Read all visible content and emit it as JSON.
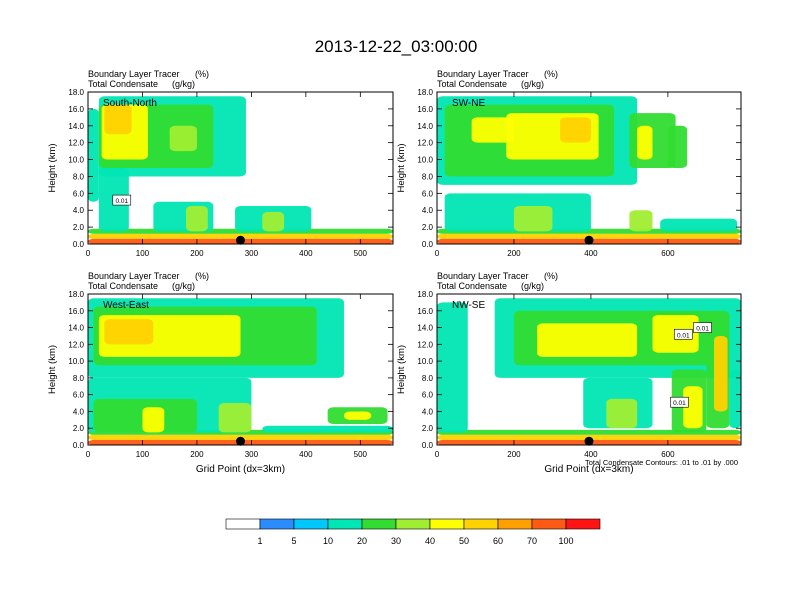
{
  "figure": {
    "title": "2013-12-22_03:00:00",
    "contour_note": "Total Condensate Contours: .01 to .01 by .000"
  },
  "colors": {
    "fill_levels": [
      "#ffffff",
      "#2b8cff",
      "#00c8ff",
      "#00e6b4",
      "#32dc32",
      "#a0ee32",
      "#ffff00",
      "#ffd200",
      "#ffa000",
      "#ff5a14",
      "#ff1414"
    ],
    "contour_line": "#000000",
    "marker": "#000000"
  },
  "chart_data": [
    {
      "type": "heatmap",
      "id": "south-north",
      "label": "South-North",
      "subtitle_left_1": "Boundary Layer Tracer",
      "subtitle_unit_1": "(%)",
      "subtitle_left_2": "Total Condensate",
      "subtitle_unit_2": "(g/kg)",
      "ylabel": "Height (km)",
      "xlabel": "",
      "xlim": [
        0,
        560
      ],
      "ylim": [
        0,
        18
      ],
      "xticks": [
        0,
        100,
        200,
        300,
        400,
        500
      ],
      "yticks": [
        "0.0",
        "2.0",
        "4.0",
        "6.0",
        "8.0",
        "10.0",
        "12.0",
        "14.0",
        "16.0",
        "18.0"
      ],
      "marker_x": 280,
      "contour_labels": [
        {
          "x": 62,
          "y": 5.2,
          "text": "0.01"
        }
      ],
      "regions": [
        {
          "x0": 0,
          "x1": 560,
          "y0": 1.2,
          "y1": 1.8,
          "v": 25
        },
        {
          "x0": 0,
          "x1": 560,
          "y0": 0.6,
          "y1": 1.2,
          "v": 55
        },
        {
          "x0": 0,
          "x1": 560,
          "y0": 0,
          "y1": 0.6,
          "v": 85
        },
        {
          "x0": 20,
          "x1": 290,
          "y0": 8,
          "y1": 17.5,
          "v": 10
        },
        {
          "x0": 20,
          "x1": 230,
          "y0": 9,
          "y1": 16.5,
          "v": 25
        },
        {
          "x0": 25,
          "x1": 110,
          "y0": 10,
          "y1": 16.5,
          "v": 45
        },
        {
          "x0": 30,
          "x1": 80,
          "y0": 13,
          "y1": 16.5,
          "v": 55
        },
        {
          "x0": 150,
          "x1": 200,
          "y0": 11,
          "y1": 14,
          "v": 35
        },
        {
          "x0": 20,
          "x1": 75,
          "y0": 1.5,
          "y1": 9,
          "v": 15
        },
        {
          "x0": 120,
          "x1": 230,
          "y0": 1.5,
          "y1": 5,
          "v": 10
        },
        {
          "x0": 180,
          "x1": 220,
          "y0": 1.5,
          "y1": 4.5,
          "v": 30
        },
        {
          "x0": 270,
          "x1": 410,
          "y0": 1.5,
          "y1": 4.5,
          "v": 10
        },
        {
          "x0": 320,
          "x1": 360,
          "y0": 1.5,
          "y1": 3.8,
          "v": 30
        },
        {
          "x0": 0,
          "x1": 20,
          "y0": 5,
          "y1": 16,
          "v": 10
        }
      ]
    },
    {
      "type": "heatmap",
      "id": "sw-ne",
      "label": "SW-NE",
      "subtitle_left_1": "Boundary Layer Tracer",
      "subtitle_unit_1": "(%)",
      "subtitle_left_2": "Total Condensate",
      "subtitle_unit_2": "(g/kg)",
      "ylabel": "Height (km)",
      "xlabel": "",
      "xlim": [
        0,
        790
      ],
      "ylim": [
        0,
        18
      ],
      "xticks": [
        0,
        200,
        400,
        600
      ],
      "yticks": [
        "0.0",
        "2.0",
        "4.0",
        "6.0",
        "8.0",
        "10.0",
        "12.0",
        "14.0",
        "16.0",
        "18.0"
      ],
      "marker_x": 395,
      "contour_labels": [],
      "regions": [
        {
          "x0": 0,
          "x1": 790,
          "y0": 1.2,
          "y1": 1.8,
          "v": 25
        },
        {
          "x0": 0,
          "x1": 790,
          "y0": 0.6,
          "y1": 1.2,
          "v": 55
        },
        {
          "x0": 0,
          "x1": 790,
          "y0": 0,
          "y1": 0.6,
          "v": 85
        },
        {
          "x0": 0,
          "x1": 520,
          "y0": 7,
          "y1": 17.5,
          "v": 10
        },
        {
          "x0": 20,
          "x1": 460,
          "y0": 8,
          "y1": 16.5,
          "v": 25
        },
        {
          "x0": 180,
          "x1": 420,
          "y0": 10,
          "y1": 15.5,
          "v": 45
        },
        {
          "x0": 320,
          "x1": 400,
          "y0": 12,
          "y1": 15,
          "v": 55
        },
        {
          "x0": 90,
          "x1": 200,
          "y0": 12,
          "y1": 15,
          "v": 40
        },
        {
          "x0": 500,
          "x1": 620,
          "y0": 9,
          "y1": 15.5,
          "v": 20
        },
        {
          "x0": 520,
          "x1": 560,
          "y0": 10,
          "y1": 14,
          "v": 45
        },
        {
          "x0": 600,
          "x1": 650,
          "y0": 9,
          "y1": 14,
          "v": 20
        },
        {
          "x0": 20,
          "x1": 400,
          "y0": 1.5,
          "y1": 6,
          "v": 15
        },
        {
          "x0": 200,
          "x1": 300,
          "y0": 1.5,
          "y1": 4.5,
          "v": 30
        },
        {
          "x0": 500,
          "x1": 560,
          "y0": 1.5,
          "y1": 4,
          "v": 30
        },
        {
          "x0": 580,
          "x1": 780,
          "y0": 1.5,
          "y1": 3,
          "v": 10
        }
      ]
    },
    {
      "type": "heatmap",
      "id": "west-east",
      "label": "West-East",
      "subtitle_left_1": "Boundary Layer Tracer",
      "subtitle_unit_1": "(%)",
      "subtitle_left_2": "Total Condensate",
      "subtitle_unit_2": "(g/kg)",
      "ylabel": "Height (km)",
      "xlabel": "Grid Point (dx=3km)",
      "xlim": [
        0,
        560
      ],
      "ylim": [
        0,
        18
      ],
      "xticks": [
        0,
        100,
        200,
        300,
        400,
        500
      ],
      "yticks": [
        "0.0",
        "2.0",
        "4.0",
        "6.0",
        "8.0",
        "10.0",
        "12.0",
        "14.0",
        "16.0",
        "18.0"
      ],
      "marker_x": 280,
      "contour_labels": [],
      "regions": [
        {
          "x0": 0,
          "x1": 560,
          "y0": 1.2,
          "y1": 1.8,
          "v": 25
        },
        {
          "x0": 0,
          "x1": 560,
          "y0": 0.6,
          "y1": 1.2,
          "v": 55
        },
        {
          "x0": 0,
          "x1": 560,
          "y0": 0,
          "y1": 0.6,
          "v": 85
        },
        {
          "x0": 0,
          "x1": 470,
          "y0": 8,
          "y1": 17.5,
          "v": 10
        },
        {
          "x0": 10,
          "x1": 420,
          "y0": 9.5,
          "y1": 16.5,
          "v": 25
        },
        {
          "x0": 20,
          "x1": 280,
          "y0": 10.5,
          "y1": 15.5,
          "v": 45
        },
        {
          "x0": 30,
          "x1": 120,
          "y0": 12,
          "y1": 15,
          "v": 55
        },
        {
          "x0": 0,
          "x1": 300,
          "y0": 1.5,
          "y1": 8,
          "v": 10
        },
        {
          "x0": 10,
          "x1": 200,
          "y0": 1.5,
          "y1": 5.5,
          "v": 25
        },
        {
          "x0": 100,
          "x1": 140,
          "y0": 1.5,
          "y1": 4.5,
          "v": 45
        },
        {
          "x0": 240,
          "x1": 300,
          "y0": 1.5,
          "y1": 5,
          "v": 30
        },
        {
          "x0": 440,
          "x1": 550,
          "y0": 2.5,
          "y1": 4.5,
          "v": 25
        },
        {
          "x0": 470,
          "x1": 520,
          "y0": 3,
          "y1": 4,
          "v": 40
        },
        {
          "x0": 320,
          "x1": 560,
          "y0": 1.5,
          "y1": 2.3,
          "v": 10
        }
      ]
    },
    {
      "type": "heatmap",
      "id": "nw-se",
      "label": "NW-SE",
      "subtitle_left_1": "Boundary Layer Tracer",
      "subtitle_unit_1": "(%)",
      "subtitle_left_2": "Total Condensate",
      "subtitle_unit_2": "(g/kg)",
      "ylabel": "Height (km)",
      "xlabel": "Grid Point (dx=3km)",
      "xlim": [
        0,
        790
      ],
      "ylim": [
        0,
        18
      ],
      "xticks": [
        0,
        200,
        400,
        600
      ],
      "yticks": [
        "0.0",
        "2.0",
        "4.0",
        "6.0",
        "8.0",
        "10.0",
        "12.0",
        "14.0",
        "16.0",
        "18.0"
      ],
      "marker_x": 395,
      "contour_labels": [
        {
          "x": 640,
          "y": 13.2,
          "text": "0.01"
        },
        {
          "x": 690,
          "y": 14.0,
          "text": "0.01"
        },
        {
          "x": 630,
          "y": 5.1,
          "text": "0.01"
        }
      ],
      "regions": [
        {
          "x0": 0,
          "x1": 790,
          "y0": 1.2,
          "y1": 1.8,
          "v": 25
        },
        {
          "x0": 0,
          "x1": 790,
          "y0": 0.6,
          "y1": 1.2,
          "v": 55
        },
        {
          "x0": 0,
          "x1": 790,
          "y0": 0,
          "y1": 0.6,
          "v": 85
        },
        {
          "x0": 0,
          "x1": 80,
          "y0": 1.5,
          "y1": 17,
          "v": 10
        },
        {
          "x0": 150,
          "x1": 790,
          "y0": 8,
          "y1": 17.5,
          "v": 10
        },
        {
          "x0": 200,
          "x1": 720,
          "y0": 9.5,
          "y1": 16,
          "v": 25
        },
        {
          "x0": 260,
          "x1": 520,
          "y0": 10.5,
          "y1": 14.5,
          "v": 45
        },
        {
          "x0": 560,
          "x1": 680,
          "y0": 11,
          "y1": 15.5,
          "v": 40
        },
        {
          "x0": 700,
          "x1": 760,
          "y0": 2,
          "y1": 16,
          "v": 25
        },
        {
          "x0": 720,
          "x1": 755,
          "y0": 4,
          "y1": 13,
          "v": 55
        },
        {
          "x0": 380,
          "x1": 560,
          "y0": 2,
          "y1": 8,
          "v": 15
        },
        {
          "x0": 440,
          "x1": 520,
          "y0": 2,
          "y1": 5.5,
          "v": 30
        },
        {
          "x0": 610,
          "x1": 700,
          "y0": 1.5,
          "y1": 9,
          "v": 20
        },
        {
          "x0": 640,
          "x1": 690,
          "y0": 2,
          "y1": 7,
          "v": 45
        },
        {
          "x0": 760,
          "x1": 790,
          "y0": 2,
          "y1": 9,
          "v": 15
        }
      ]
    }
  ],
  "colorbar": {
    "labels": [
      "1",
      "5",
      "10",
      "20",
      "30",
      "40",
      "50",
      "60",
      "70",
      "100"
    ]
  }
}
